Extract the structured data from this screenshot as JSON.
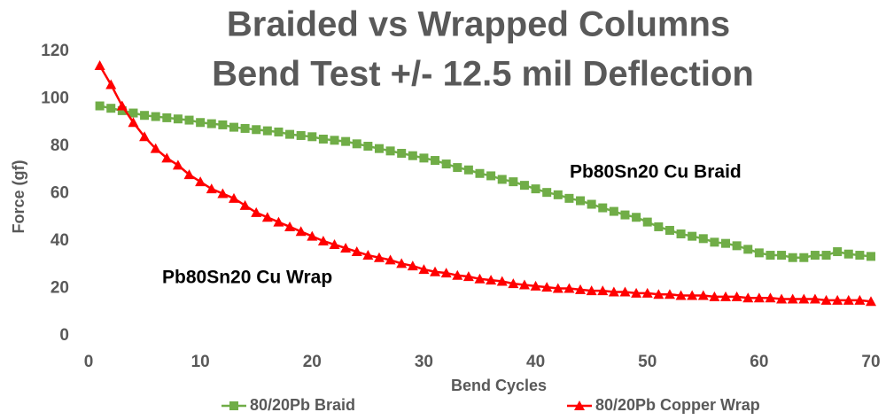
{
  "chart_data": {
    "type": "line",
    "title": [
      "Braided vs Wrapped Columns",
      "Bend Test  +/- 12.5 mil Deflection"
    ],
    "x_label": "Bend Cycles",
    "y_label": "Force (gf)",
    "annotations": [
      "Pb80Sn20 Cu Braid",
      "Pb80Sn20 Cu Wrap"
    ],
    "x": [
      1,
      2,
      3,
      4,
      5,
      6,
      7,
      8,
      9,
      10,
      11,
      12,
      13,
      14,
      15,
      16,
      17,
      18,
      19,
      20,
      21,
      22,
      23,
      24,
      25,
      26,
      27,
      28,
      29,
      30,
      31,
      32,
      33,
      34,
      35,
      36,
      37,
      38,
      39,
      40,
      41,
      42,
      43,
      44,
      45,
      46,
      47,
      48,
      49,
      50,
      51,
      52,
      53,
      54,
      55,
      56,
      57,
      58,
      59,
      60,
      61,
      62,
      63,
      64,
      65,
      66,
      67,
      68,
      69,
      70
    ],
    "series": [
      {
        "name": "80/20Pb Braid",
        "color": "#70ad47",
        "marker": "square",
        "values": [
          97,
          96,
          95,
          94,
          93,
          92.5,
          92,
          91.5,
          91,
          90,
          89.5,
          89,
          88,
          87.5,
          87,
          86.5,
          86,
          85,
          84.5,
          84,
          83,
          82.5,
          82,
          81,
          80,
          79,
          78,
          77,
          76,
          75,
          74,
          72.5,
          71,
          70,
          68.5,
          67.5,
          66,
          65,
          63.5,
          62,
          60.5,
          59.5,
          58,
          57,
          55.5,
          54,
          52.5,
          51,
          50,
          48,
          46,
          44.5,
          43,
          42,
          41,
          39.5,
          39,
          38,
          36.5,
          35,
          34,
          34,
          33,
          33,
          34,
          34,
          35.5,
          34.5,
          34,
          33.5
        ]
      },
      {
        "name": "80/20Pb Copper Wrap",
        "color": "#ff0000",
        "marker": "triangle",
        "values": [
          114,
          106,
          97,
          90,
          84,
          79,
          75,
          72,
          68,
          65,
          62,
          60,
          58,
          55,
          52,
          50,
          48,
          46,
          44,
          42,
          40,
          38.5,
          37,
          35.5,
          34,
          33,
          32,
          30.5,
          29.5,
          28,
          27,
          26.5,
          25.5,
          25,
          24,
          23.5,
          23,
          22,
          21.5,
          21,
          20.5,
          20,
          20,
          19.5,
          19,
          19,
          18.5,
          18.5,
          18,
          18,
          17.5,
          17.5,
          17,
          17,
          17,
          16.5,
          16.5,
          16.5,
          16,
          16,
          16,
          15.5,
          15.5,
          15.5,
          15.5,
          15,
          15,
          15,
          15,
          14.5
        ]
      }
    ],
    "xlim": [
      0,
      70
    ],
    "xticks": [
      0,
      10,
      20,
      30,
      40,
      50,
      60,
      70
    ],
    "ylim": [
      0,
      120
    ],
    "yticks": [
      0,
      20,
      40,
      60,
      80,
      100,
      120
    ],
    "grid": false,
    "legend": "bottom"
  }
}
